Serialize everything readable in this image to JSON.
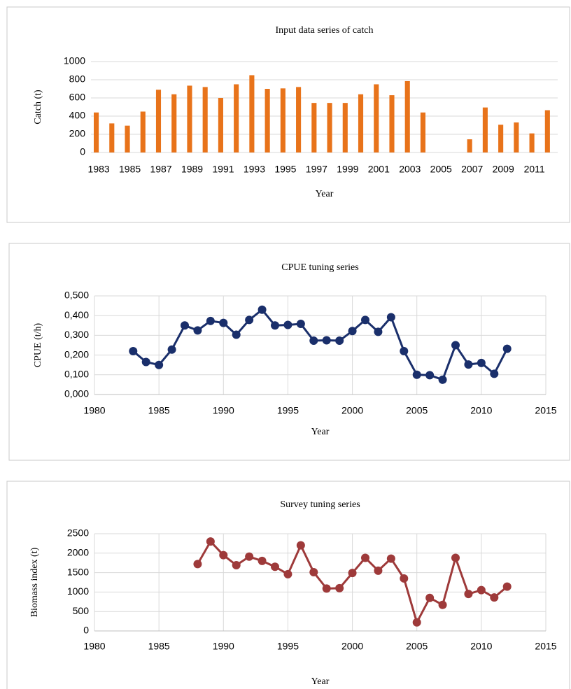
{
  "chart_data": [
    {
      "type": "bar",
      "title": "Input data series of catch",
      "y_label": "Catch (t)",
      "x_label": "Year",
      "categories": [
        "1983",
        null,
        "1985",
        null,
        "1987",
        null,
        "1989",
        null,
        "1991",
        null,
        "1993",
        null,
        "1995",
        null,
        "1997",
        null,
        "1999",
        null,
        "2001",
        null,
        "2003",
        null,
        "2005",
        null,
        "2007",
        null,
        "2009",
        null,
        "2011",
        null
      ],
      "values": [
        440,
        320,
        295,
        450,
        690,
        640,
        735,
        720,
        600,
        750,
        850,
        700,
        705,
        720,
        545,
        545,
        545,
        640,
        750,
        630,
        785,
        440,
        null,
        null,
        145,
        495,
        305,
        330,
        210,
        465
      ],
      "color": "#e8731a",
      "ylim": [
        0,
        1000
      ],
      "yticks": [
        0,
        200,
        400,
        600,
        800,
        1000
      ],
      "grid": true
    },
    {
      "type": "line",
      "title": "CPUE tuning series",
      "y_label": "CPUE (t/h)",
      "x_label": "Year",
      "x": [
        1983,
        1984,
        1985,
        1986,
        1987,
        1988,
        1989,
        1990,
        1991,
        1992,
        1993,
        1994,
        1995,
        1996,
        1997,
        1998,
        1999,
        2000,
        2001,
        2002,
        2003,
        2004,
        2005,
        2006,
        2007,
        2008,
        2009,
        2010,
        2011,
        2012
      ],
      "values": [
        0.22,
        0.165,
        0.15,
        0.228,
        0.35,
        0.325,
        0.373,
        0.363,
        0.303,
        0.378,
        0.43,
        0.35,
        0.353,
        0.358,
        0.273,
        0.275,
        0.273,
        0.322,
        0.378,
        0.318,
        0.392,
        0.22,
        0.1,
        0.098,
        0.075,
        0.25,
        0.152,
        0.16,
        0.105,
        0.232
      ],
      "color": "#1a2f6b",
      "xlim": [
        1980,
        2015
      ],
      "xticks": [
        1980,
        1985,
        1990,
        1995,
        2000,
        2005,
        2010,
        2015
      ],
      "ylim": [
        0,
        0.5
      ],
      "yticks": [
        {
          "value": 0,
          "label": "0,000"
        },
        {
          "value": 0.1,
          "label": "0,100"
        },
        {
          "value": 0.2,
          "label": "0,200"
        },
        {
          "value": 0.3,
          "label": "0,300"
        },
        {
          "value": 0.4,
          "label": "0,400"
        },
        {
          "value": 0.5,
          "label": "0,500"
        }
      ],
      "grid": true
    },
    {
      "type": "line",
      "title": "Survey tuning series",
      "y_label": "Biomass index (t)",
      "x_label": "Year",
      "x": [
        1988,
        1989,
        1990,
        1991,
        1992,
        1993,
        1994,
        1995,
        1996,
        1997,
        1998,
        1999,
        2000,
        2001,
        2002,
        2003,
        2004,
        2005,
        2006,
        2007,
        2008,
        2009,
        2010,
        2011,
        2012
      ],
      "values": [
        1720,
        2300,
        1950,
        1690,
        1910,
        1800,
        1650,
        1460,
        2200,
        1510,
        1090,
        1100,
        1490,
        1880,
        1550,
        1860,
        1350,
        220,
        850,
        670,
        1880,
        950,
        1050,
        860,
        1140
      ],
      "color": "#9e3a3a",
      "xlim": [
        1980,
        2015
      ],
      "xticks": [
        1980,
        1985,
        1990,
        1995,
        2000,
        2005,
        2010,
        2015
      ],
      "ylim": [
        0,
        2500
      ],
      "yticks": [
        0,
        500,
        1000,
        1500,
        2000,
        2500
      ],
      "grid": true
    }
  ]
}
